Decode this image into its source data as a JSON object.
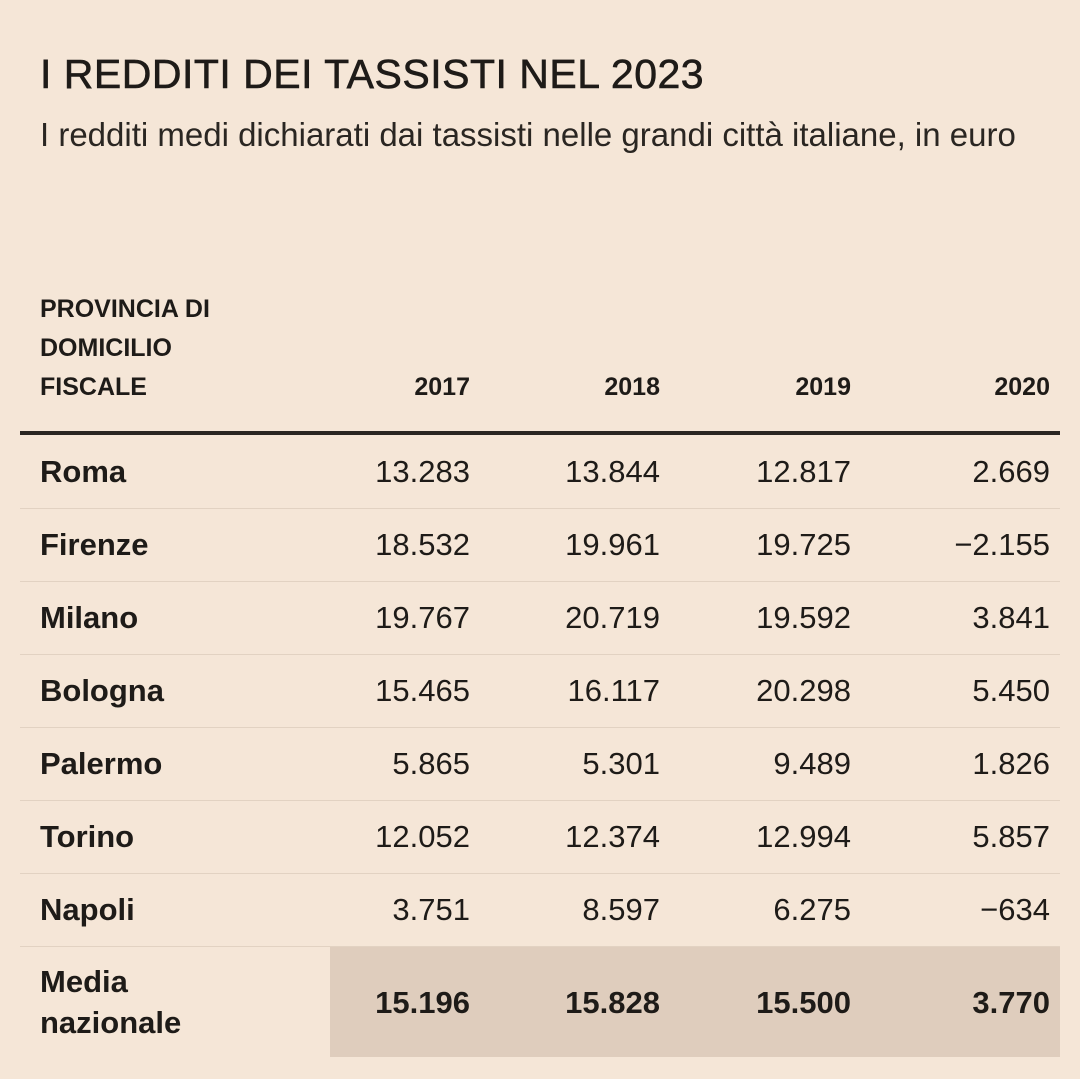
{
  "chart_data": {
    "type": "table",
    "title": "I REDDITI DEI TASSISTI NEL 2023",
    "subtitle": "I redditi medi dichiarati dai tassisti nelle grandi città italiane, in euro",
    "columns": [
      "PROVINCIA DI DOMICILIO FISCALE",
      "2017",
      "2018",
      "2019",
      "2020"
    ],
    "rows": [
      {
        "name": "Roma",
        "values": [
          "13.283",
          "13.844",
          "12.817",
          "2.669"
        ]
      },
      {
        "name": "Firenze",
        "values": [
          "18.532",
          "19.961",
          "19.725",
          "−2.155"
        ]
      },
      {
        "name": "Milano",
        "values": [
          "19.767",
          "20.719",
          "19.592",
          "3.841"
        ]
      },
      {
        "name": "Bologna",
        "values": [
          "15.465",
          "16.117",
          "20.298",
          "5.450"
        ]
      },
      {
        "name": "Palermo",
        "values": [
          "5.865",
          "5.301",
          "9.489",
          "1.826"
        ]
      },
      {
        "name": "Torino",
        "values": [
          "12.052",
          "12.374",
          "12.994",
          "5.857"
        ]
      },
      {
        "name": "Napoli",
        "values": [
          "3.751",
          "8.597",
          "6.275",
          "−634"
        ]
      }
    ],
    "average": {
      "name": "Media nazionale",
      "values": [
        "15.196",
        "15.828",
        "15.500",
        "3.770"
      ]
    }
  },
  "colors": {
    "background": "#f5e6d7",
    "average_highlight": "#dfcdbd",
    "text": "#1e1b18"
  }
}
